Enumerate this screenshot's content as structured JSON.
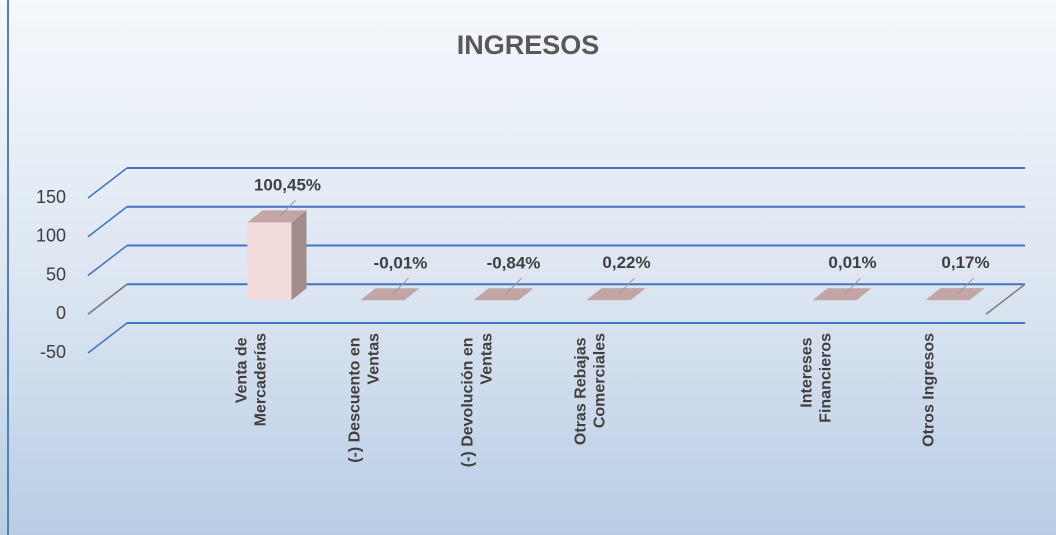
{
  "chart_data": {
    "type": "bar3d",
    "title": "INGRESOS",
    "categories": [
      "Venta de Mercaderías",
      "(-) Descuento en Ventas",
      "(-) Devolución en Ventas",
      "Otras Rebajas Comerciales",
      null,
      "Intereses Financieros",
      "Otros Ingresos"
    ],
    "values": [
      100.45,
      -0.01,
      -0.84,
      0.22,
      null,
      0.01,
      0.17
    ],
    "value_labels": [
      "100,45%",
      "-0,01%",
      "-0,84%",
      "0,22%",
      null,
      "0,01%",
      "0,17%"
    ],
    "color": "#f2dcdb",
    "ylim": [
      -50,
      150
    ],
    "yticks": [
      -50,
      0,
      50,
      100,
      150
    ],
    "grid": true
  }
}
